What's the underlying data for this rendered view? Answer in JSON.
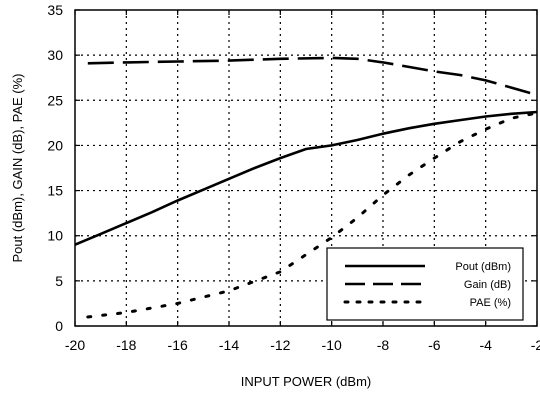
{
  "chart_data": {
    "type": "line",
    "title": "",
    "xlabel": "INPUT POWER (dBm)",
    "ylabel": "Pout (dBm), GAIN (dB), PAE (%)",
    "xlim": [
      -20,
      -2
    ],
    "ylim": [
      0,
      35
    ],
    "x_ticks": [
      -20,
      -18,
      -16,
      -14,
      -12,
      -10,
      -8,
      -6,
      -4,
      -2
    ],
    "y_ticks": [
      0,
      5,
      10,
      15,
      20,
      25,
      30,
      35
    ],
    "x_tick_labels": [
      "-20",
      "-18",
      "-16",
      "-14",
      "-12",
      "-10",
      "-8",
      "-6",
      "-4",
      "-2"
    ],
    "y_tick_labels": [
      "0",
      "5",
      "10",
      "15",
      "20",
      "25",
      "30",
      "35"
    ],
    "grid": true,
    "legend_position": "bottom-right",
    "series": [
      {
        "name": "Pout (dBm)",
        "style": "solid",
        "x": [
          -20,
          -19,
          -18,
          -17,
          -16,
          -15,
          -14,
          -13,
          -12,
          -11,
          -10,
          -9,
          -8,
          -7,
          -6,
          -5,
          -4,
          -3,
          -2
        ],
        "y": [
          9.0,
          10.2,
          11.4,
          12.6,
          13.9,
          15.1,
          16.3,
          17.5,
          18.6,
          19.6,
          20.0,
          20.6,
          21.3,
          21.9,
          22.4,
          22.8,
          23.2,
          23.5,
          23.7
        ]
      },
      {
        "name": "Gain (dB)",
        "style": "dashed",
        "x": [
          -19.5,
          -18,
          -16,
          -14,
          -12,
          -10,
          -9,
          -8,
          -7,
          -6,
          -5,
          -4,
          -3,
          -2
        ],
        "y": [
          29.1,
          29.2,
          29.3,
          29.4,
          29.6,
          29.7,
          29.6,
          29.2,
          28.7,
          28.2,
          27.8,
          27.2,
          26.4,
          25.6
        ]
      },
      {
        "name": "PAE (%)",
        "style": "dotted",
        "x": [
          -19.5,
          -18,
          -16,
          -14,
          -12,
          -10,
          -9,
          -8,
          -7,
          -6,
          -5,
          -4,
          -3,
          -2
        ],
        "y": [
          1.0,
          1.5,
          2.5,
          3.9,
          6.0,
          9.8,
          12.0,
          14.5,
          16.7,
          18.6,
          20.4,
          21.8,
          23.0,
          23.6
        ]
      }
    ],
    "colors": {
      "line": "#000000",
      "grid": "#000000",
      "background": "#ffffff"
    }
  }
}
